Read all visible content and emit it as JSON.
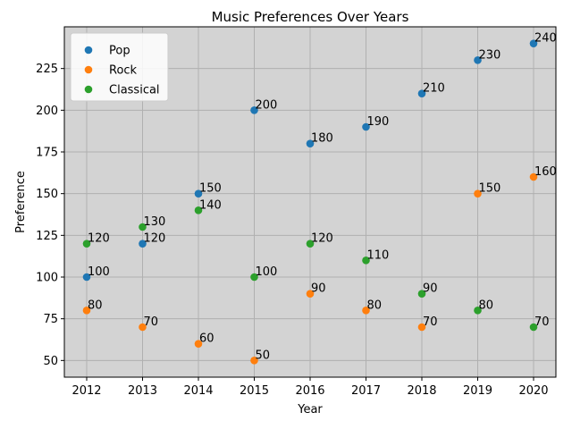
{
  "chart_data": {
    "type": "scatter",
    "title": "Music Preferences Over Years",
    "xlabel": "Year",
    "ylabel": "Preference",
    "x": [
      2012,
      2013,
      2014,
      2015,
      2016,
      2017,
      2018,
      2019,
      2020
    ],
    "xlim": [
      2011.6,
      2020.4
    ],
    "ylim": [
      40,
      250
    ],
    "yticks": [
      50,
      75,
      100,
      125,
      150,
      175,
      200,
      225
    ],
    "grid": true,
    "legend_position": "top-left",
    "series": [
      {
        "name": "Pop",
        "color": "#1f77b4",
        "values": [
          100,
          120,
          150,
          200,
          180,
          190,
          210,
          230,
          240
        ]
      },
      {
        "name": "Rock",
        "color": "#ff7f0e",
        "values": [
          80,
          70,
          60,
          50,
          90,
          80,
          70,
          150,
          160
        ]
      },
      {
        "name": "Classical",
        "color": "#2ca02c",
        "values": [
          120,
          130,
          140,
          100,
          120,
          110,
          90,
          80,
          70
        ]
      }
    ]
  }
}
